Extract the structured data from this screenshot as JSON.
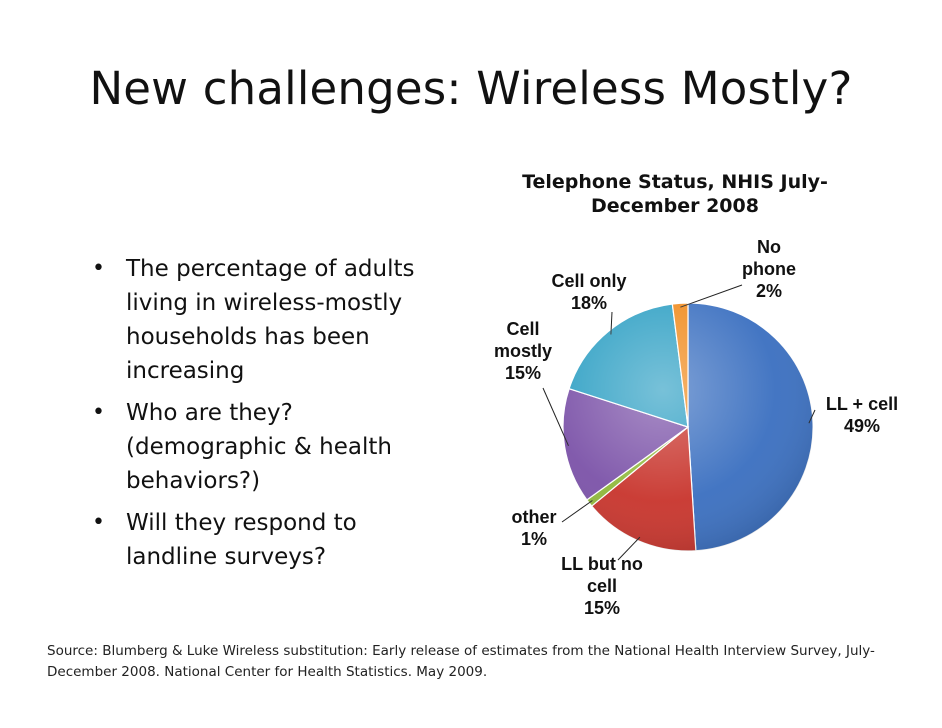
{
  "slide": {
    "title": "New challenges: Wireless Mostly?",
    "bullets": [
      "The percentage of adults living in wireless-mostly households has been increasing",
      "Who are they? (demographic & health behaviors?)",
      "Will they respond to landline surveys?"
    ],
    "source": "Source: Blumberg & Luke  Wireless substitution: Early release of estimates from the National Health Interview Survey, July-December 2008. National Center for Health Statistics. May 2009."
  },
  "chart_data": {
    "type": "pie",
    "title": "Telephone Status, NHIS July-December 2008",
    "slices": [
      {
        "label": "LL + cell",
        "value": 49,
        "display": "49%",
        "color": "#3a6fc0"
      },
      {
        "label": "LL but no cell",
        "value": 15,
        "display": "15%",
        "color": "#c8342c"
      },
      {
        "label": "other",
        "value": 1,
        "display": "1%",
        "color": "#8fb83a"
      },
      {
        "label": "Cell mostly",
        "value": 15,
        "display": "15%",
        "color": "#7b52a8"
      },
      {
        "label": "Cell only",
        "value": 18,
        "display": "18%",
        "color": "#2fa0c4"
      },
      {
        "label": "No phone",
        "value": 2,
        "display": "2%",
        "color": "#f08a1c"
      }
    ]
  }
}
